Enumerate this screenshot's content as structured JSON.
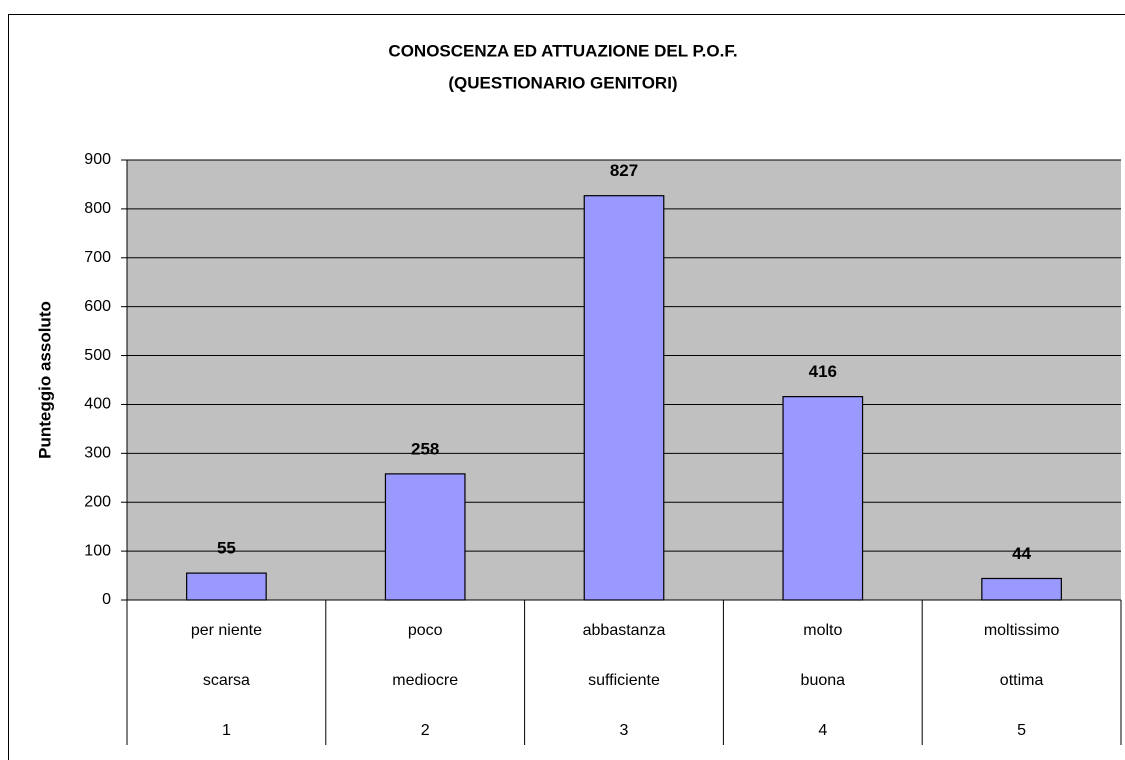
{
  "chart_data": {
    "type": "bar",
    "title": "CONOSCENZA ED ATTUAZIONE DEL P.O.F.",
    "subtitle": "(QUESTIONARIO GENITORI)",
    "y_label": "Punteggio assoluto",
    "categories": [
      [
        "per niente",
        "scarsa",
        "1"
      ],
      [
        "poco",
        "mediocre",
        "2"
      ],
      [
        "abbastanza",
        "sufficiente",
        "3"
      ],
      [
        "molto",
        "buona",
        "4"
      ],
      [
        "moltissimo",
        "ottima",
        "5"
      ]
    ],
    "values": [
      55,
      258,
      827,
      416,
      44
    ],
    "color": "#9999ff",
    "ylim": [
      0,
      900
    ],
    "yticks": [
      0,
      100,
      200,
      300,
      400,
      500,
      600,
      700,
      800,
      900
    ],
    "grid": true
  }
}
